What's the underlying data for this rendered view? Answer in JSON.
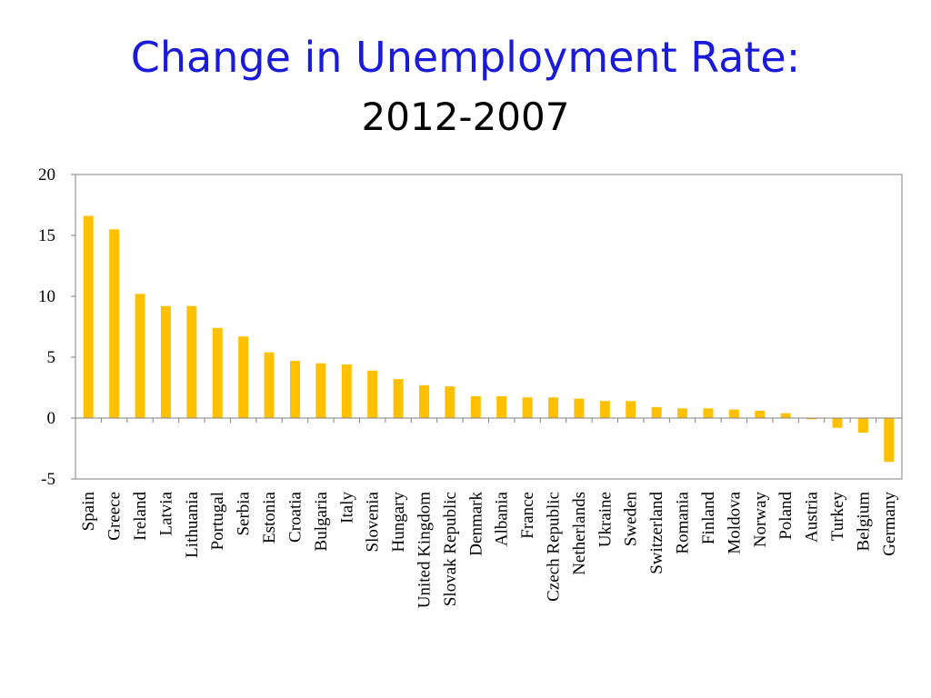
{
  "slide": {
    "title": "Change in Unemployment Rate:",
    "subtitle": "2012-2007"
  },
  "colors": {
    "title": "#1a1adb",
    "subtitle": "#000000",
    "bar": "#ffc000",
    "axis": "#808080"
  },
  "chart_data": {
    "type": "bar",
    "title": "Change in Unemployment Rate: 2012-2007",
    "xlabel": "",
    "ylabel": "",
    "ylim": [
      -5,
      20
    ],
    "yticks": [
      -5,
      0,
      5,
      10,
      15,
      20
    ],
    "grid": false,
    "categories": [
      "Spain",
      "Greece",
      "Ireland",
      "Latvia",
      "Lithuania",
      "Portugal",
      "Serbia",
      "Estonia",
      "Croatia",
      "Bulgaria",
      "Italy",
      "Slovenia",
      "Hungary",
      "United Kingdom",
      "Slovak Republic",
      "Denmark",
      "Albania",
      "France",
      "Czech Republic",
      "Netherlands",
      "Ukraine",
      "Sweden",
      "Switzerland",
      "Romania",
      "Finland",
      "Moldova",
      "Norway",
      "Poland",
      "Austria",
      "Turkey",
      "Belgium",
      "Germany"
    ],
    "values": [
      16.6,
      15.5,
      10.2,
      9.2,
      9.2,
      7.4,
      6.7,
      5.4,
      4.7,
      4.5,
      4.4,
      3.9,
      3.2,
      2.7,
      2.6,
      1.8,
      1.8,
      1.7,
      1.7,
      1.6,
      1.4,
      1.4,
      0.9,
      0.8,
      0.8,
      0.7,
      0.6,
      0.4,
      -0.1,
      -0.8,
      -1.2,
      -3.6
    ]
  }
}
